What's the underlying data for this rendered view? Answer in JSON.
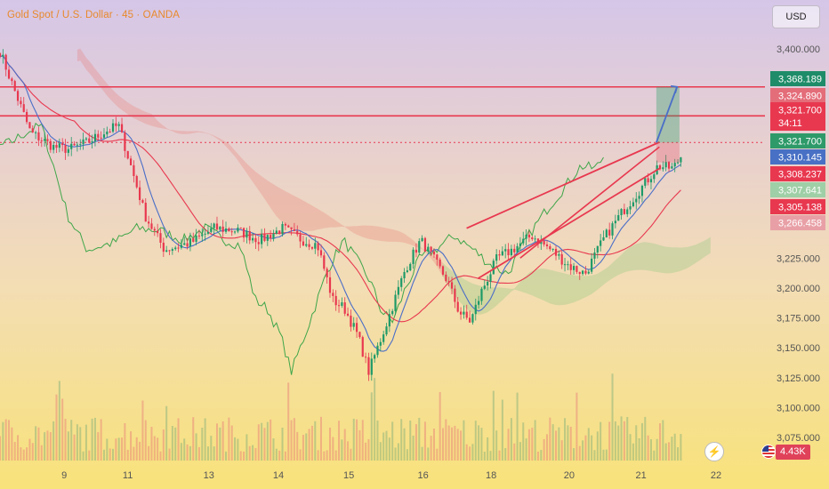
{
  "header": {
    "title": "Gold Spot / U.S. Dollar · 45 · OANDA",
    "currency": "USD"
  },
  "chart_data": {
    "type": "candlestick",
    "title": "Gold Spot / U.S. Dollar · 45 · OANDA",
    "ylim": [
      3057,
      3430
    ],
    "y_ticks": [
      3400,
      3225,
      3200,
      3175,
      3150,
      3125,
      3100,
      3075
    ],
    "y_tick_labels": [
      "3,400.000",
      "3,225.000",
      "3,200.000",
      "3,175.000",
      "3,150.000",
      "3,125.000",
      "3,100.000",
      "3,075.000"
    ],
    "x_ticks": [
      "9",
      "11",
      "13",
      "14",
      "15",
      "16",
      "18",
      "20",
      "21",
      "22"
    ],
    "x_tick_positions": [
      0.084,
      0.167,
      0.273,
      0.364,
      0.456,
      0.553,
      0.642,
      0.744,
      0.838,
      0.936
    ],
    "price_labels": [
      {
        "value": "3,368.189",
        "color": "#1e8c68"
      },
      {
        "value": "3,324.890",
        "color": "#e46d7a"
      },
      {
        "value": "3,321.700",
        "sub": "34:11",
        "color": "#e8384f"
      },
      {
        "value": "3,321.700",
        "color": "#2e9a6a"
      },
      {
        "value": "3,310.145",
        "color": "#4870c4"
      },
      {
        "value": "3,308.237",
        "color": "#e8384f"
      },
      {
        "value": "3,307.641",
        "color": "#9fcfa6"
      },
      {
        "value": "3,305.138",
        "color": "#e8384f"
      },
      {
        "value": "3,266.458",
        "color": "#e8a0a6"
      }
    ],
    "horizontal_lines": [
      {
        "value": 3368.2,
        "color": "#e8384f"
      },
      {
        "value": 3344.0,
        "color": "#e8384f"
      },
      {
        "value": 3321.7,
        "color": "#e8384f",
        "style": "dotted"
      }
    ],
    "key_points": [
      [
        0.0,
        3398
      ],
      [
        0.015,
        3372
      ],
      [
        0.04,
        3330
      ],
      [
        0.07,
        3318
      ],
      [
        0.09,
        3316
      ],
      [
        0.115,
        3322
      ],
      [
        0.135,
        3330
      ],
      [
        0.155,
        3336
      ],
      [
        0.172,
        3300
      ],
      [
        0.19,
        3260
      ],
      [
        0.215,
        3232
      ],
      [
        0.25,
        3238
      ],
      [
        0.28,
        3250
      ],
      [
        0.31,
        3248
      ],
      [
        0.34,
        3240
      ],
      [
        0.37,
        3250
      ],
      [
        0.395,
        3240
      ],
      [
        0.415,
        3236
      ],
      [
        0.435,
        3190
      ],
      [
        0.45,
        3183
      ],
      [
        0.468,
        3160
      ],
      [
        0.482,
        3130
      ],
      [
        0.505,
        3170
      ],
      [
        0.53,
        3216
      ],
      [
        0.55,
        3240
      ],
      [
        0.565,
        3226
      ],
      [
        0.585,
        3206
      ],
      [
        0.6,
        3180
      ],
      [
        0.615,
        3172
      ],
      [
        0.63,
        3198
      ],
      [
        0.65,
        3225
      ],
      [
        0.67,
        3232
      ],
      [
        0.695,
        3244
      ],
      [
        0.72,
        3232
      ],
      [
        0.745,
        3218
      ],
      [
        0.765,
        3212
      ],
      [
        0.79,
        3242
      ],
      [
        0.815,
        3265
      ],
      [
        0.84,
        3285
      ],
      [
        0.86,
        3302
      ],
      [
        0.88,
        3300
      ],
      [
        0.89,
        3310
      ]
    ],
    "volume_level": 0.35,
    "volume_label": "4.43K",
    "projection": {
      "from": [
        0.858,
        3321.7
      ],
      "to": [
        0.885,
        3368.2
      ]
    }
  }
}
